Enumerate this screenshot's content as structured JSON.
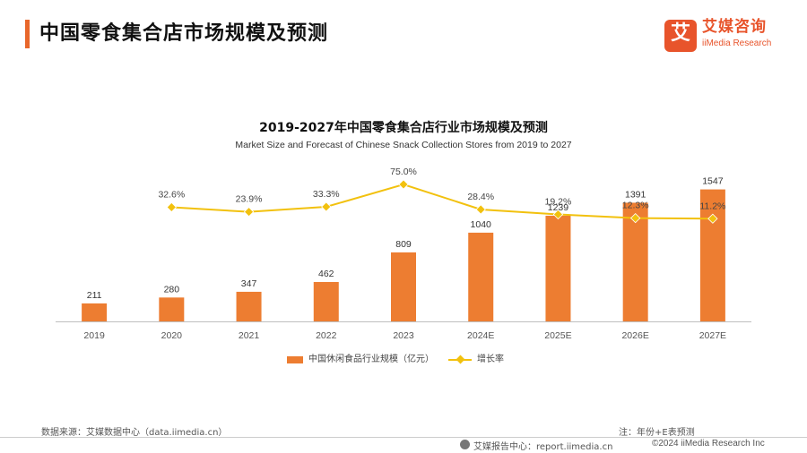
{
  "header": {
    "title": "中国零食集合店市场规模及预测",
    "accent_color": "#e8672b"
  },
  "logo": {
    "glyph": "艾",
    "cn": "艾媒咨询",
    "en": "iiMedia Research",
    "color": "#e8542b"
  },
  "chart_data": {
    "type": "bar",
    "title": "2019-2027年中国零食集合店行业市场规模及预测",
    "subtitle": "Market Size and Forecast of Chinese Snack Collection Stores from 2019 to 2027",
    "categories": [
      "2019",
      "2020",
      "2021",
      "2022",
      "2023",
      "2024E",
      "2025E",
      "2026E",
      "2027E"
    ],
    "series": [
      {
        "name": "中国休闲食品行业规模（亿元）",
        "type": "bar",
        "axis": "left",
        "values": [
          211,
          280,
          347,
          462,
          809,
          1040,
          1239,
          1391,
          1547
        ],
        "labels": [
          "211",
          "280",
          "347",
          "462",
          "809",
          "1040",
          "1239",
          "1391",
          "1547"
        ],
        "color": "#ed7d31"
      },
      {
        "name": "增长率",
        "type": "line",
        "axis": "right",
        "values": [
          null,
          32.6,
          23.9,
          33.3,
          75.0,
          28.4,
          19.2,
          12.3,
          11.2
        ],
        "labels": [
          "",
          "32.6%",
          "23.9%",
          "33.3%",
          "75.0%",
          "28.4%",
          "19.2%",
          "12.3%",
          "11.2%"
        ],
        "color": "#f2c10e"
      }
    ],
    "y_left_range": [
      0,
      1700
    ],
    "y_right_range": [
      -180,
      90
    ],
    "grid": false,
    "legend_position": "bottom",
    "axis_color": "#bfbfbf"
  },
  "footer": {
    "source": "数据来源：艾媒数据中心（data.iimedia.cn）",
    "note": "注：年份+E表预测",
    "center": "艾媒报告中心：report.iimedia.cn",
    "copyright": "©2024  iiMedia Research  Inc"
  }
}
